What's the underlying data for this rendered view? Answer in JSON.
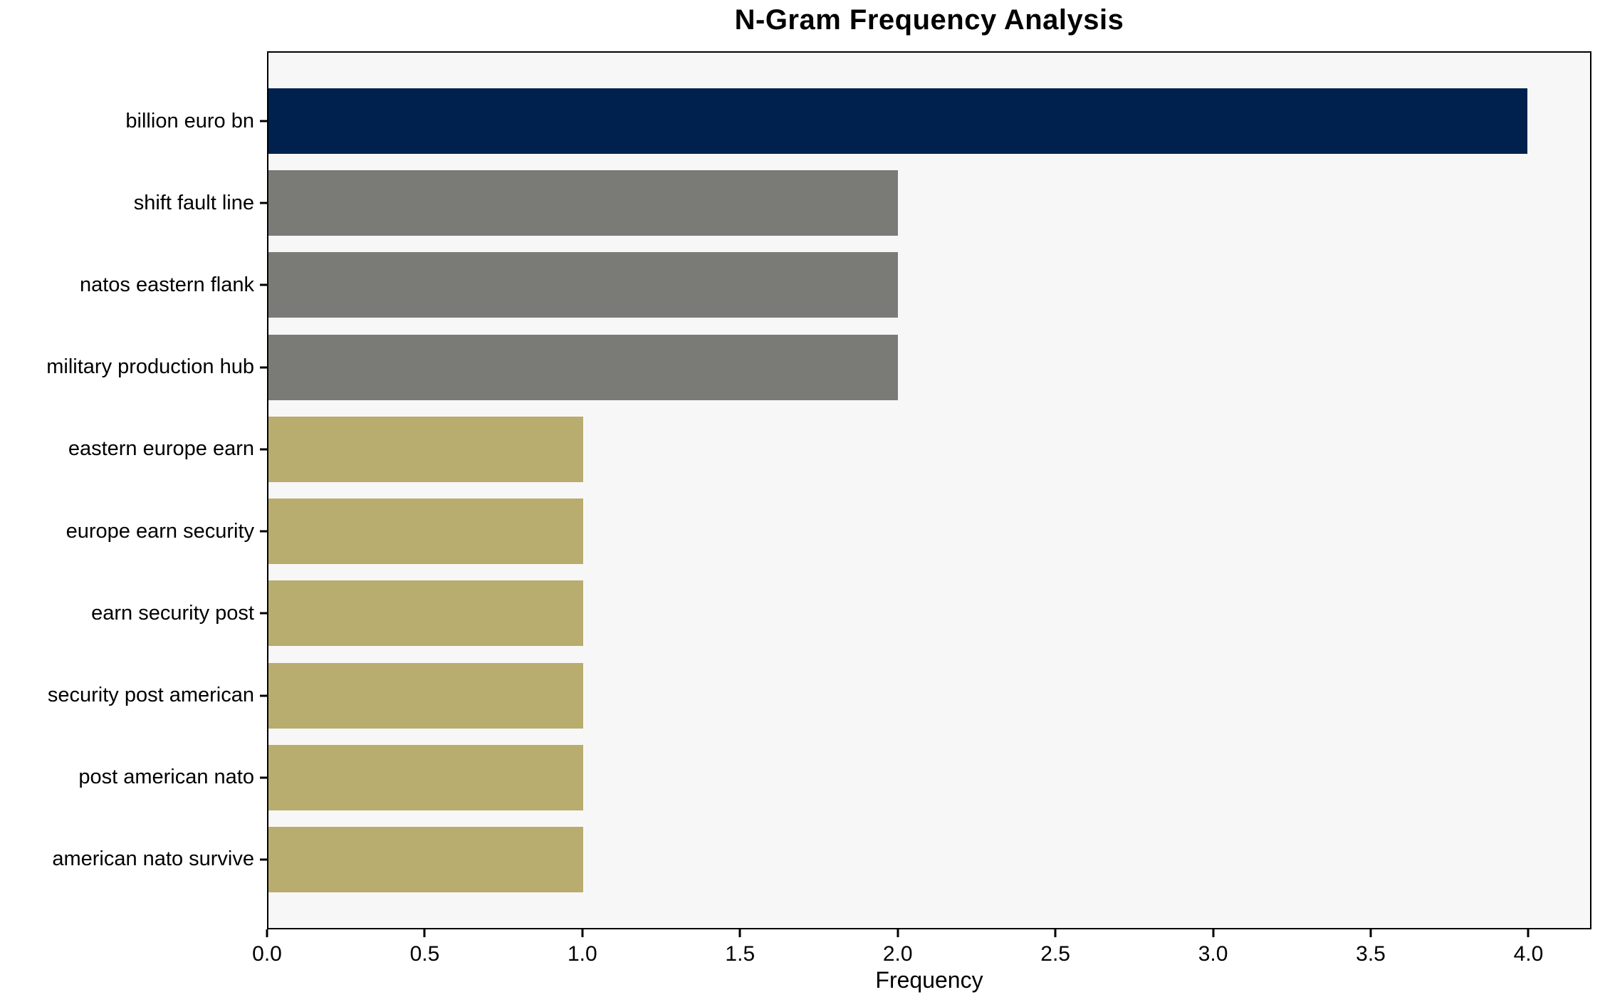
{
  "title": "N-Gram Frequency Analysis",
  "chart_data": {
    "type": "bar",
    "orientation": "horizontal",
    "title": "N-Gram Frequency Analysis",
    "xlabel": "Frequency",
    "ylabel": "",
    "categories": [
      "billion euro bn",
      "shift fault line",
      "natos eastern flank",
      "military production hub",
      "eastern europe earn",
      "europe earn security",
      "earn security post",
      "security post american",
      "post american nato",
      "american nato survive"
    ],
    "values": [
      4,
      2,
      2,
      2,
      1,
      1,
      1,
      1,
      1,
      1
    ],
    "bar_colors": [
      "#00214d",
      "#7a7a77",
      "#7a7a77",
      "#7a7a77",
      "#b8ac6e",
      "#b8ac6e",
      "#b8ac6e",
      "#b8ac6e",
      "#b8ac6e",
      "#b8ac6e"
    ],
    "xlim": [
      0,
      4.2
    ],
    "xticks": [
      0.0,
      0.5,
      1.0,
      1.5,
      2.0,
      2.5,
      3.0,
      3.5,
      4.0
    ],
    "xtick_labels": [
      "0.0",
      "0.5",
      "1.0",
      "1.5",
      "2.0",
      "2.5",
      "3.0",
      "3.5",
      "4.0"
    ],
    "grid": false,
    "legend_position": "none",
    "colors": {
      "bar_max": "#00214d",
      "bar_mid": "#7a7a77",
      "bar_low": "#b8ac6e",
      "plot_background": "#f8f7f7",
      "figure_background": "#ffffff",
      "spine": "#000000",
      "text": "#000000"
    }
  }
}
